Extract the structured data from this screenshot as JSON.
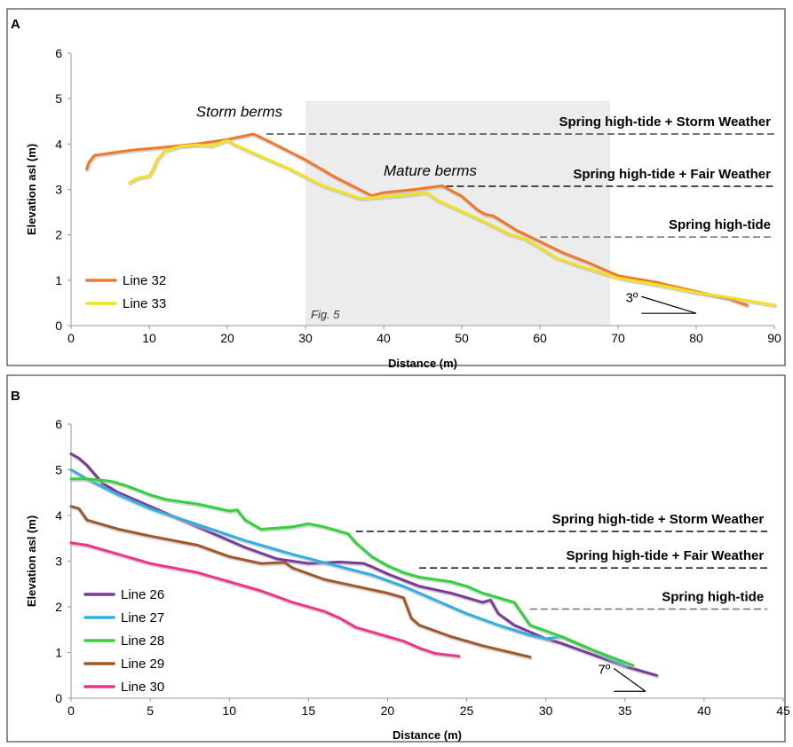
{
  "chart_data": [
    {
      "panel": "A",
      "type": "line",
      "xlabel": "Distance (m)",
      "ylabel": "Elevation asl (m)",
      "xlim": [
        0,
        90
      ],
      "ylim": [
        0,
        6
      ],
      "xticks": [
        0,
        10,
        20,
        30,
        40,
        50,
        60,
        70,
        80,
        90
      ],
      "yticks": [
        0,
        1,
        2,
        3,
        4,
        5,
        6
      ],
      "grid": false,
      "legend_position": "bottom-left",
      "shaded_regions": [
        {
          "x": [
            30,
            69
          ],
          "y": [
            0,
            4.95
          ],
          "color": "#ececec",
          "label": "Fig. 5"
        }
      ],
      "reference_lines": [
        {
          "label": "Spring high-tide + Storm Weather",
          "y": 4.22,
          "x": [
            25,
            90
          ],
          "color": "#555555"
        },
        {
          "label": "Spring high-tide + Fair Weather",
          "y": 3.07,
          "x": [
            48,
            90
          ],
          "color": "#222222"
        },
        {
          "label": "Spring high-tide",
          "y": 1.95,
          "x": [
            60,
            90
          ],
          "color": "#777777"
        }
      ],
      "annotations": [
        {
          "text": "Storm berms",
          "x": 16,
          "y": 4.6
        },
        {
          "text": "Mature berms",
          "x": 40,
          "y": 3.3
        }
      ],
      "slope_marker": {
        "text": "3º",
        "x_start": 73,
        "x_end": 80,
        "y": 0.27,
        "rise": 0.37
      },
      "series": [
        {
          "name": "Line 32",
          "color": "#f0782a",
          "x": [
            2,
            2.3,
            3,
            5,
            8,
            12,
            16,
            20,
            23.3,
            24,
            26,
            30,
            34,
            38.5,
            40,
            44,
            47.5,
            50,
            52,
            53,
            54,
            57,
            60,
            63,
            66,
            70,
            75,
            80,
            84,
            86.5
          ],
          "y": [
            3.45,
            3.6,
            3.75,
            3.8,
            3.87,
            3.93,
            4.0,
            4.1,
            4.22,
            4.17,
            4.0,
            3.65,
            3.25,
            2.86,
            2.93,
            3.0,
            3.08,
            2.85,
            2.55,
            2.45,
            2.42,
            2.1,
            1.85,
            1.6,
            1.4,
            1.1,
            0.95,
            0.75,
            0.6,
            0.45
          ]
        },
        {
          "name": "Line 33",
          "color": "#f2e21e",
          "x": [
            7.5,
            8.5,
            10,
            10.5,
            11,
            12,
            14,
            16,
            18,
            19,
            20,
            21,
            24,
            28,
            32,
            37,
            41,
            45.5,
            47,
            50,
            53,
            56,
            58,
            60,
            62,
            65,
            70,
            75,
            80,
            85,
            90
          ],
          "y": [
            3.15,
            3.25,
            3.3,
            3.45,
            3.65,
            3.85,
            3.95,
            3.98,
            3.96,
            4.02,
            4.08,
            3.98,
            3.75,
            3.45,
            3.1,
            2.8,
            2.85,
            2.93,
            2.75,
            2.52,
            2.28,
            2.02,
            1.92,
            1.72,
            1.5,
            1.32,
            1.05,
            0.9,
            0.73,
            0.6,
            0.45
          ]
        }
      ]
    },
    {
      "panel": "B",
      "type": "line",
      "xlabel": "Distance (m)",
      "ylabel": "Elevation asl (m)",
      "xlim": [
        0,
        45
      ],
      "ylim": [
        0,
        6
      ],
      "xticks": [
        0,
        5,
        10,
        15,
        20,
        25,
        30,
        35,
        40,
        45
      ],
      "yticks": [
        0,
        1,
        2,
        3,
        4,
        5,
        6
      ],
      "grid": false,
      "legend_position": "bottom-left",
      "reference_lines": [
        {
          "label": "Spring high-tide + Storm Weather",
          "y": 3.65,
          "x": [
            18,
            44
          ],
          "color": "#222222"
        },
        {
          "label": "Spring high-tide + Fair Weather",
          "y": 2.85,
          "x": [
            22,
            44
          ],
          "color": "#222222"
        },
        {
          "label": "Spring high-tide",
          "y": 1.95,
          "x": [
            29,
            44
          ],
          "color": "#777777"
        }
      ],
      "slope_marker": {
        "text": "7º",
        "x_start": 34.3,
        "x_end": 36.3,
        "y": 0.15,
        "rise": 0.5
      },
      "series": [
        {
          "name": "Line 26",
          "color": "#7a3a9a",
          "x": [
            0,
            0.5,
            1,
            1.5,
            2,
            2.5,
            3,
            5,
            8,
            11,
            13,
            15,
            17,
            18.5,
            19,
            20,
            22,
            24,
            26,
            26.5,
            27,
            28,
            30,
            31,
            33,
            35,
            37
          ],
          "y": [
            5.35,
            5.25,
            5.1,
            4.9,
            4.7,
            4.6,
            4.5,
            4.2,
            3.75,
            3.3,
            3.05,
            2.95,
            2.98,
            2.95,
            2.88,
            2.72,
            2.45,
            2.3,
            2.1,
            2.15,
            1.85,
            1.6,
            1.3,
            1.2,
            0.95,
            0.7,
            0.5
          ]
        },
        {
          "name": "Line 27",
          "color": "#2fb0e0",
          "x": [
            0,
            1,
            3,
            5,
            8,
            11,
            14,
            17,
            19,
            21,
            23,
            25,
            27,
            29,
            30,
            31,
            33,
            35
          ],
          "y": [
            5.0,
            4.8,
            4.45,
            4.15,
            3.8,
            3.45,
            3.15,
            2.88,
            2.7,
            2.45,
            2.15,
            1.85,
            1.6,
            1.38,
            1.3,
            1.35,
            1.05,
            0.72
          ]
        },
        {
          "name": "Line 28",
          "color": "#32d23a",
          "x": [
            0,
            1,
            2.5,
            3.5,
            5,
            6,
            8,
            10,
            10.5,
            11,
            12,
            14,
            15,
            16,
            17.5,
            18,
            19,
            20,
            21,
            22,
            24,
            25,
            26,
            27.5,
            28,
            28.5,
            29,
            31,
            33,
            35.5
          ],
          "y": [
            4.8,
            4.8,
            4.75,
            4.65,
            4.45,
            4.35,
            4.25,
            4.1,
            4.12,
            3.9,
            3.7,
            3.75,
            3.82,
            3.75,
            3.6,
            3.4,
            3.1,
            2.9,
            2.75,
            2.65,
            2.55,
            2.45,
            2.3,
            2.15,
            2.1,
            1.85,
            1.6,
            1.35,
            1.05,
            0.72
          ]
        },
        {
          "name": "Line 29",
          "color": "#a0582a",
          "x": [
            0,
            0.5,
            1,
            3,
            5,
            8,
            10,
            12,
            13.5,
            14,
            16,
            18,
            20,
            21,
            21.5,
            22,
            24,
            26,
            29
          ],
          "y": [
            4.2,
            4.15,
            3.9,
            3.7,
            3.55,
            3.35,
            3.1,
            2.95,
            2.97,
            2.85,
            2.6,
            2.45,
            2.3,
            2.2,
            1.75,
            1.6,
            1.35,
            1.15,
            0.9
          ]
        },
        {
          "name": "Line 30",
          "color": "#f0348a",
          "x": [
            0,
            1,
            3,
            5,
            8,
            10,
            12,
            14,
            16,
            17,
            18,
            19,
            20,
            21,
            22,
            23,
            24.5
          ],
          "y": [
            3.4,
            3.35,
            3.15,
            2.95,
            2.75,
            2.55,
            2.35,
            2.1,
            1.9,
            1.75,
            1.55,
            1.45,
            1.35,
            1.25,
            1.1,
            0.98,
            0.92
          ]
        }
      ]
    }
  ]
}
